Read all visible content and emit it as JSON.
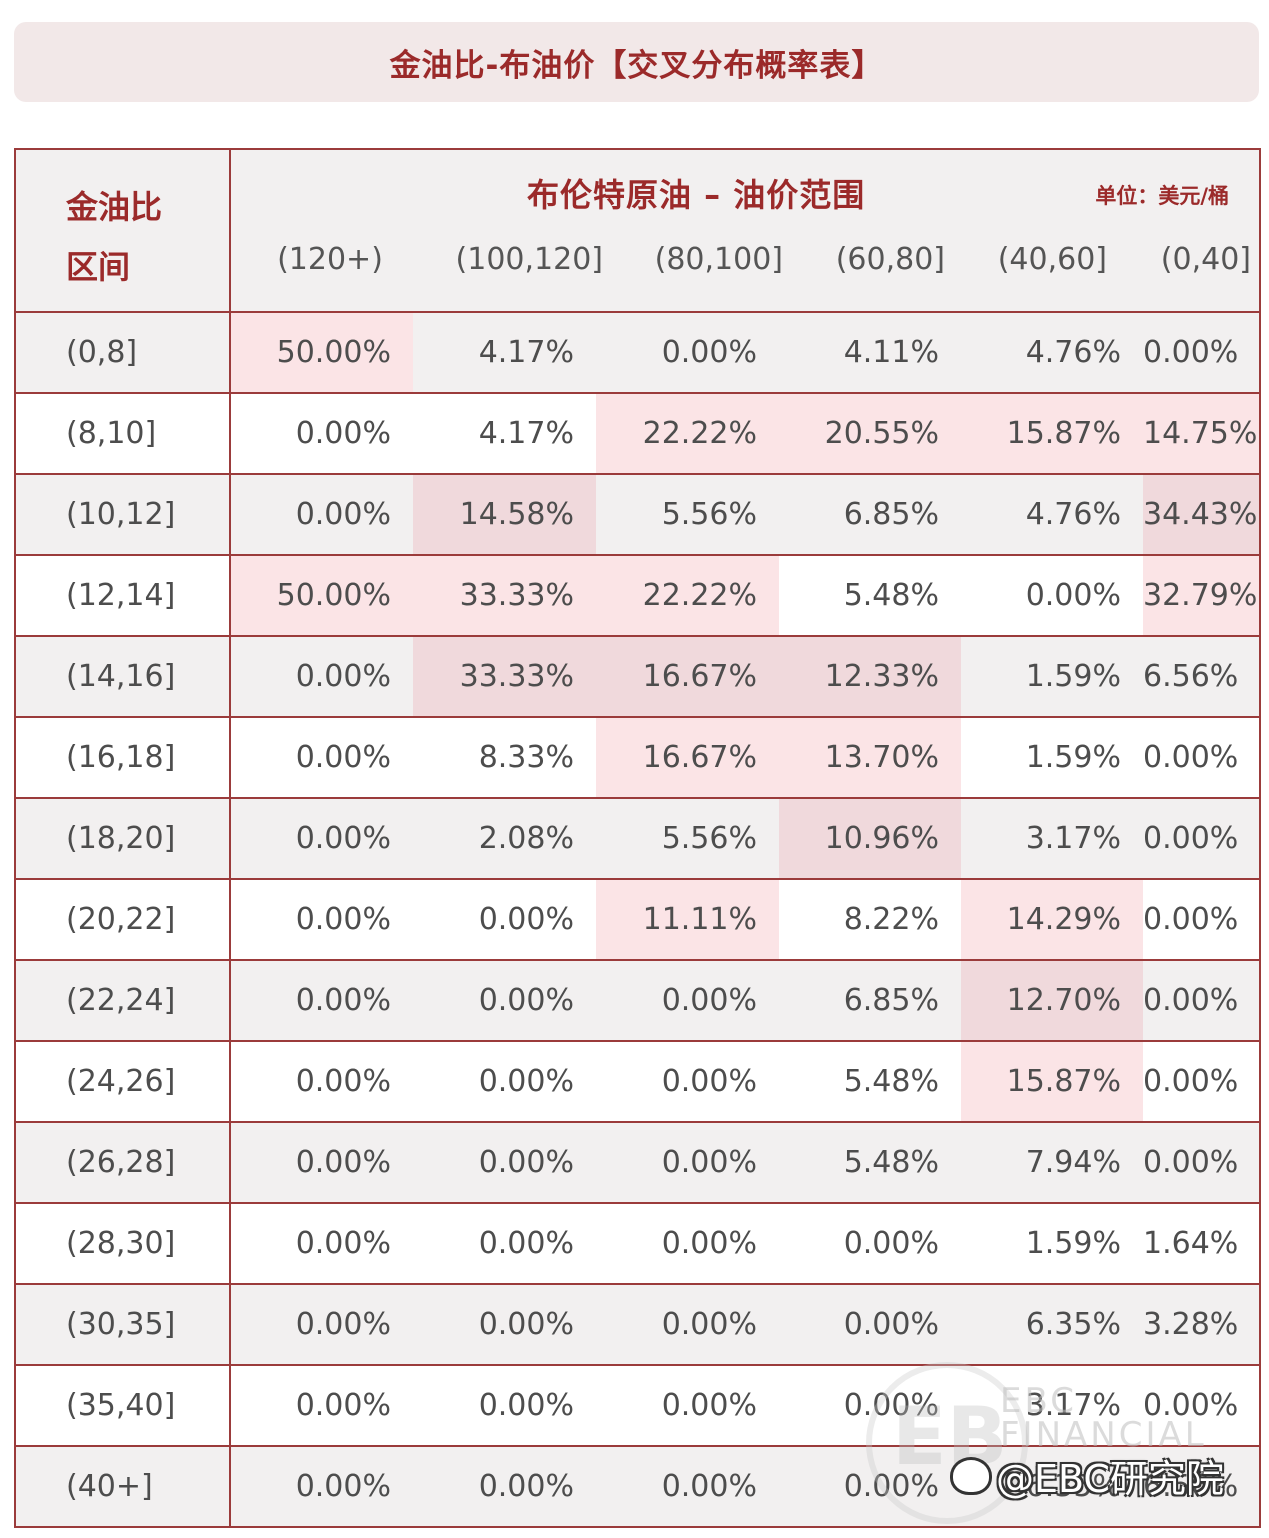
{
  "title": "金油比-布油价【交叉分布概率表】",
  "header": {
    "row_label_1": "金油比",
    "row_label_2": "区间",
    "super_header": "布伦特原油 – 油价范围",
    "unit": "单位：美元/桶",
    "columns": [
      "(120+)",
      "(100,120]",
      "(80,100]",
      "(60,80]",
      "(40,60]",
      "(0,40]"
    ]
  },
  "rows": [
    {
      "label": "(0,8]",
      "values": [
        "50.00%",
        "4.17%",
        "0.00%",
        "4.11%",
        "4.76%",
        "0.00%"
      ]
    },
    {
      "label": "(8,10]",
      "values": [
        "0.00%",
        "4.17%",
        "22.22%",
        "20.55%",
        "15.87%",
        "14.75%"
      ]
    },
    {
      "label": "(10,12]",
      "values": [
        "0.00%",
        "14.58%",
        "5.56%",
        "6.85%",
        "4.76%",
        "34.43%"
      ]
    },
    {
      "label": "(12,14]",
      "values": [
        "50.00%",
        "33.33%",
        "22.22%",
        "5.48%",
        "0.00%",
        "32.79%"
      ]
    },
    {
      "label": "(14,16]",
      "values": [
        "0.00%",
        "33.33%",
        "16.67%",
        "12.33%",
        "1.59%",
        "6.56%"
      ]
    },
    {
      "label": "(16,18]",
      "values": [
        "0.00%",
        "8.33%",
        "16.67%",
        "13.70%",
        "1.59%",
        "0.00%"
      ]
    },
    {
      "label": "(18,20]",
      "values": [
        "0.00%",
        "2.08%",
        "5.56%",
        "10.96%",
        "3.17%",
        "0.00%"
      ]
    },
    {
      "label": "(20,22]",
      "values": [
        "0.00%",
        "0.00%",
        "11.11%",
        "8.22%",
        "14.29%",
        "0.00%"
      ]
    },
    {
      "label": "(22,24]",
      "values": [
        "0.00%",
        "0.00%",
        "0.00%",
        "6.85%",
        "12.70%",
        "0.00%"
      ]
    },
    {
      "label": "(24,26]",
      "values": [
        "0.00%",
        "0.00%",
        "0.00%",
        "5.48%",
        "15.87%",
        "0.00%"
      ]
    },
    {
      "label": "(26,28]",
      "values": [
        "0.00%",
        "0.00%",
        "0.00%",
        "5.48%",
        "7.94%",
        "0.00%"
      ]
    },
    {
      "label": "(28,30]",
      "values": [
        "0.00%",
        "0.00%",
        "0.00%",
        "0.00%",
        "1.59%",
        "1.64%"
      ]
    },
    {
      "label": "(30,35]",
      "values": [
        "0.00%",
        "0.00%",
        "0.00%",
        "0.00%",
        "6.35%",
        "3.28%"
      ]
    },
    {
      "label": "(35,40]",
      "values": [
        "0.00%",
        "0.00%",
        "0.00%",
        "0.00%",
        "3.17%",
        "0.00%"
      ]
    },
    {
      "label": "(40+]",
      "values": [
        "0.00%",
        "0.00%",
        "0.00%",
        "0.00%",
        "6.35%",
        "6.56%"
      ]
    }
  ],
  "highlight_colors": {
    "light": "#fbe4e6",
    "dark": "#f0d9dc"
  },
  "watermark": {
    "logo_letters": "EB",
    "text": "EBC FINANCIAL"
  },
  "credit": {
    "icon": "weibo-icon",
    "text": "@EBC研究院"
  }
}
